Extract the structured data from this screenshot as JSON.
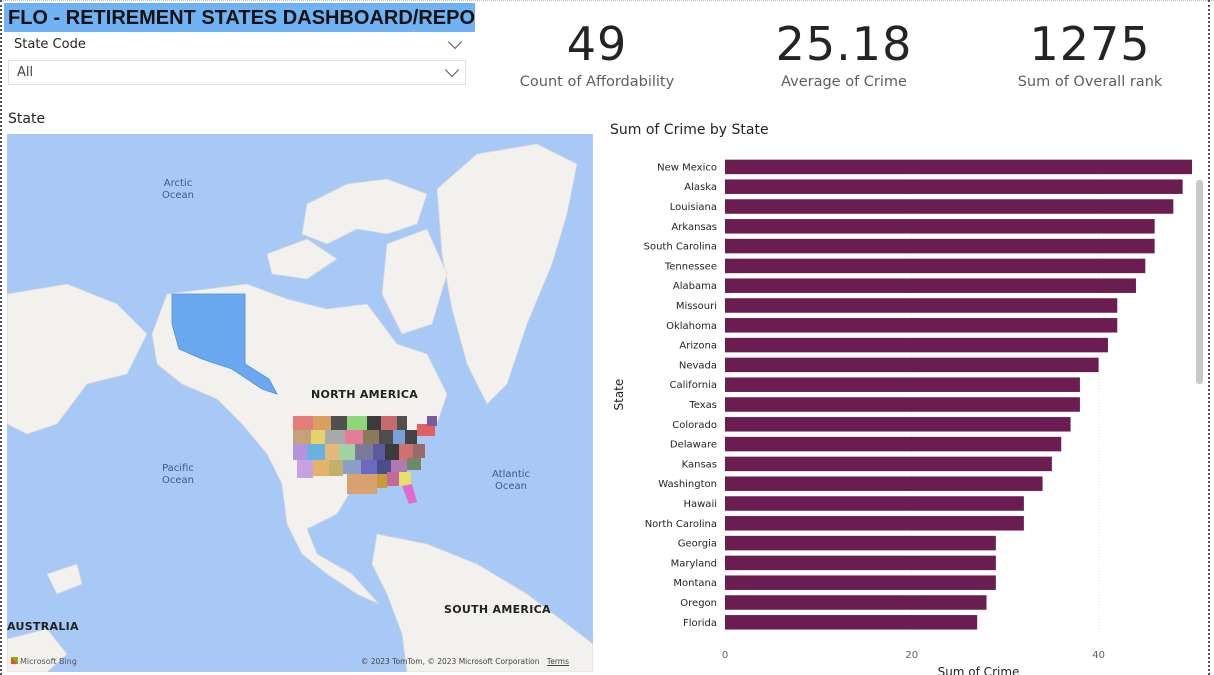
{
  "header": {
    "title": "FLO - RETIREMENT STATES DASHBOARD/REPORT"
  },
  "slicer": {
    "label": "State Code",
    "selected": "All"
  },
  "kpis": [
    {
      "value": "49",
      "label": "Count of Affordability"
    },
    {
      "value": "25.18",
      "label": "Average of Crime"
    },
    {
      "value": "1275",
      "label": "Sum of Overall rank"
    }
  ],
  "map": {
    "title": "State",
    "labels": {
      "arctic": "Arctic\nOcean",
      "pacific": "Pacific\nOcean",
      "atlantic": "Atlantic\nOcean",
      "north_america": "NORTH AMERICA",
      "south_america": "SOUTH AMERICA",
      "australia": "AUSTRALIA"
    },
    "attribution": "Microsoft Bing",
    "copyright": "© 2023 TomTom, © 2023 Microsoft Corporation",
    "terms": "Terms",
    "colors": {
      "water": "#a8c8f5",
      "land": "#f2f1ee",
      "alaska": "#6aa9f0"
    }
  },
  "chart_data": {
    "type": "bar",
    "orientation": "horizontal",
    "title": "Sum of Crime by State",
    "xlabel": "Sum of Crime",
    "ylabel": "State",
    "color": "#6b1d52",
    "xlim": [
      0,
      50
    ],
    "xticks": [
      0,
      20,
      40
    ],
    "categories": [
      "New Mexico",
      "Alaska",
      "Louisiana",
      "Arkansas",
      "South Carolina",
      "Tennessee",
      "Alabama",
      "Missouri",
      "Oklahoma",
      "Arizona",
      "Nevada",
      "California",
      "Texas",
      "Colorado",
      "Delaware",
      "Kansas",
      "Washington",
      "Hawaii",
      "North Carolina",
      "Georgia",
      "Maryland",
      "Montana",
      "Oregon",
      "Florida"
    ],
    "values": [
      50,
      49,
      48,
      46,
      46,
      45,
      44,
      42,
      42,
      41,
      40,
      38,
      38,
      37,
      36,
      35,
      34,
      32,
      32,
      29,
      29,
      29,
      28,
      27
    ]
  }
}
